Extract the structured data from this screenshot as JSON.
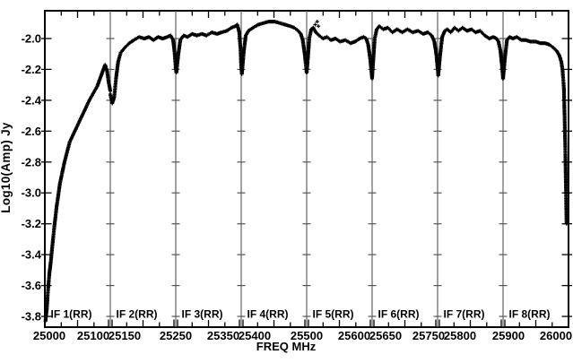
{
  "chart_data": {
    "type": "line",
    "title": "",
    "xlabel": "FREQ MHz",
    "ylabel": "Log10(Amp) Jy",
    "marker": "+",
    "grid": "panel-dividers-only",
    "legend": "none",
    "xlim": [
      25000,
      26000
    ],
    "ylim": [
      -3.87,
      -1.82
    ],
    "colors": {
      "curve": "#000000",
      "divider": "#555555",
      "frame": "#000000",
      "background": "#ffffff"
    },
    "y_ticks": [
      {
        "v": -2.0,
        "label": "-2.0"
      },
      {
        "v": -2.2,
        "label": "-2.2"
      },
      {
        "v": -2.4,
        "label": "-2.4"
      },
      {
        "v": -2.6,
        "label": "-2.6"
      },
      {
        "v": -2.8,
        "label": "-2.8"
      },
      {
        "v": -3.0,
        "label": "-3.0"
      },
      {
        "v": -3.2,
        "label": "-3.2"
      },
      {
        "v": -3.4,
        "label": "-3.4"
      },
      {
        "v": -3.6,
        "label": "-3.6"
      },
      {
        "v": -3.8,
        "label": "-3.8"
      }
    ],
    "x_ticks": [
      {
        "label": "25000",
        "panel": 0,
        "f": 25000,
        "dx": 5
      },
      {
        "label": "25100",
        "panel": 0,
        "f": 25100,
        "dx": -19
      },
      {
        "label": "25150",
        "panel": 1,
        "f": 25150,
        "dx": 16
      },
      {
        "label": "25250",
        "panel": 1,
        "f": 25250,
        "dx": 0
      },
      {
        "label": "25350",
        "panel": 2,
        "f": 25350,
        "dx": -20
      },
      {
        "label": "25400",
        "panel": 3,
        "f": 25400,
        "dx": 15
      },
      {
        "label": "25500",
        "panel": 3,
        "f": 25500,
        "dx": 0
      },
      {
        "label": "25600",
        "panel": 4,
        "f": 25600,
        "dx": -20
      },
      {
        "label": "25650",
        "panel": 5,
        "f": 25650,
        "dx": 15
      },
      {
        "label": "25750",
        "panel": 5,
        "f": 25750,
        "dx": -10
      },
      {
        "label": "25800",
        "panel": 6,
        "f": 25800,
        "dx": 25
      },
      {
        "label": "25900",
        "panel": 6,
        "f": 25900,
        "dx": 6
      },
      {
        "label": "26000",
        "panel": 7,
        "f": 26000,
        "dx": -14
      }
    ],
    "panels": [
      {
        "label": "IF 1(RR)",
        "xlim": [
          25000,
          25100
        ],
        "points": [
          [
            25001,
            -3.83
          ],
          [
            25003,
            -3.75
          ],
          [
            25005,
            -3.62
          ],
          [
            25007,
            -3.52
          ],
          [
            25009,
            -3.45
          ],
          [
            25012,
            -3.32
          ],
          [
            25015,
            -3.2
          ],
          [
            25018,
            -3.09
          ],
          [
            25023,
            -2.94
          ],
          [
            25030,
            -2.8
          ],
          [
            25038,
            -2.67
          ],
          [
            25048,
            -2.58
          ],
          [
            25058,
            -2.49
          ],
          [
            25068,
            -2.4
          ],
          [
            25080,
            -2.31
          ],
          [
            25086,
            -2.24
          ],
          [
            25092,
            -2.17
          ],
          [
            25095,
            -2.21
          ],
          [
            25097,
            -2.27
          ],
          [
            25100,
            -2.34
          ]
        ]
      },
      {
        "label": "IF 2(RR)",
        "xlim": [
          25150,
          25250
        ],
        "points": [
          [
            25150,
            -2.36
          ],
          [
            25153,
            -2.42
          ],
          [
            25156,
            -2.38
          ],
          [
            25159,
            -2.25
          ],
          [
            25162,
            -2.15
          ],
          [
            25166,
            -2.09
          ],
          [
            25172,
            -2.06
          ],
          [
            25179,
            -2.03
          ],
          [
            25186,
            -2.01
          ],
          [
            25194,
            -1.99
          ],
          [
            25202,
            -2.0
          ],
          [
            25209,
            -1.99
          ],
          [
            25216,
            -2.01
          ],
          [
            25223,
            -1.99
          ],
          [
            25230,
            -2.0
          ],
          [
            25237,
            -1.99
          ],
          [
            25242,
            -1.98
          ],
          [
            25246,
            -2.01
          ],
          [
            25248,
            -2.08
          ],
          [
            25250,
            -2.19
          ]
        ]
      },
      {
        "label": "IF 3(RR)",
        "xlim": [
          25250,
          25350
        ],
        "points": [
          [
            25250,
            -2.19
          ],
          [
            25251,
            -2.22
          ],
          [
            25254,
            -2.1
          ],
          [
            25257,
            -2.01
          ],
          [
            25262,
            -1.98
          ],
          [
            25268,
            -1.99
          ],
          [
            25275,
            -1.97
          ],
          [
            25282,
            -1.98
          ],
          [
            25290,
            -1.97
          ],
          [
            25297,
            -1.98
          ],
          [
            25305,
            -1.96
          ],
          [
            25313,
            -1.97
          ],
          [
            25320,
            -1.96
          ],
          [
            25328,
            -1.95
          ],
          [
            25335,
            -1.93
          ],
          [
            25341,
            -1.92
          ],
          [
            25344,
            -1.91
          ],
          [
            25347,
            -1.96
          ],
          [
            25349,
            -2.07
          ],
          [
            25350,
            -2.18
          ]
        ]
      },
      {
        "label": "IF 4(RR)",
        "xlim": [
          25400,
          25500
        ],
        "points": [
          [
            25400,
            -2.18
          ],
          [
            25401,
            -2.23
          ],
          [
            25404,
            -2.08
          ],
          [
            25407,
            -1.98
          ],
          [
            25411,
            -1.95
          ],
          [
            25418,
            -1.93
          ],
          [
            25426,
            -1.91
          ],
          [
            25434,
            -1.9
          ],
          [
            25442,
            -1.89
          ],
          [
            25451,
            -1.89
          ],
          [
            25459,
            -1.9
          ],
          [
            25467,
            -1.91
          ],
          [
            25475,
            -1.92
          ],
          [
            25481,
            -1.93
          ],
          [
            25487,
            -1.95
          ],
          [
            25491,
            -1.97
          ],
          [
            25494,
            -2.01
          ],
          [
            25497,
            -2.1
          ],
          [
            25500,
            -2.22
          ]
        ]
      },
      {
        "label": "IF 5(RR)",
        "xlim": [
          25500,
          25600
        ],
        "points": [
          [
            25500,
            -2.22
          ],
          [
            25502,
            -2.12
          ],
          [
            25504,
            -2.0
          ],
          [
            25507,
            -1.94
          ],
          [
            25510,
            -1.93
          ],
          [
            25514,
            -1.96
          ],
          [
            25519,
            -1.98
          ],
          [
            25525,
            -2.0
          ],
          [
            25531,
            -1.99
          ],
          [
            25537,
            -2.01
          ],
          [
            25544,
            -2.0
          ],
          [
            25551,
            -2.02
          ],
          [
            25559,
            -2.01
          ],
          [
            25567,
            -2.03
          ],
          [
            25574,
            -2.02
          ],
          [
            25581,
            -2.0
          ],
          [
            25587,
            -1.99
          ],
          [
            25591,
            -2.0
          ],
          [
            25594,
            -2.04
          ],
          [
            25597,
            -2.13
          ],
          [
            25600,
            -2.26
          ]
        ]
      },
      {
        "label": "IF 6(RR)",
        "xlim": [
          25650,
          25750
        ],
        "points": [
          [
            25650,
            -2.25
          ],
          [
            25652,
            -2.12
          ],
          [
            25654,
            -2.0
          ],
          [
            25657,
            -1.94
          ],
          [
            25661,
            -1.92
          ],
          [
            25667,
            -1.94
          ],
          [
            25674,
            -1.93
          ],
          [
            25681,
            -1.96
          ],
          [
            25688,
            -1.94
          ],
          [
            25696,
            -1.96
          ],
          [
            25704,
            -1.94
          ],
          [
            25712,
            -1.96
          ],
          [
            25720,
            -1.95
          ],
          [
            25728,
            -1.97
          ],
          [
            25735,
            -1.96
          ],
          [
            25741,
            -1.98
          ],
          [
            25745,
            -2.02
          ],
          [
            25748,
            -2.1
          ],
          [
            25750,
            -2.19
          ]
        ]
      },
      {
        "label": "IF 7(RR)",
        "xlim": [
          25800,
          25900
        ],
        "points": [
          [
            25800,
            -2.19
          ],
          [
            25801,
            -2.24
          ],
          [
            25804,
            -2.1
          ],
          [
            25807,
            -1.99
          ],
          [
            25811,
            -1.95
          ],
          [
            25815,
            -1.94
          ],
          [
            25820,
            -1.96
          ],
          [
            25826,
            -1.93
          ],
          [
            25832,
            -1.95
          ],
          [
            25838,
            -1.93
          ],
          [
            25845,
            -1.95
          ],
          [
            25852,
            -1.94
          ],
          [
            25858,
            -1.96
          ],
          [
            25865,
            -1.95
          ],
          [
            25872,
            -1.98
          ],
          [
            25879,
            -2.0
          ],
          [
            25885,
            -1.99
          ],
          [
            25890,
            -2.0
          ],
          [
            25893,
            -2.02
          ],
          [
            25896,
            -2.08
          ],
          [
            25898,
            -2.16
          ],
          [
            25900,
            -2.26
          ]
        ]
      },
      {
        "label": "IF 8(RR)",
        "xlim": [
          25900,
          26000
        ],
        "points": [
          [
            25900,
            -2.26
          ],
          [
            25903,
            -2.12
          ],
          [
            25906,
            -2.01
          ],
          [
            25910,
            -1.99
          ],
          [
            25915,
            -2.0
          ],
          [
            25921,
            -1.99
          ],
          [
            25928,
            -2.01
          ],
          [
            25935,
            -2.01
          ],
          [
            25942,
            -2.02
          ],
          [
            25950,
            -2.02
          ],
          [
            25957,
            -2.03
          ],
          [
            25964,
            -2.03
          ],
          [
            25971,
            -2.04
          ],
          [
            25977,
            -2.06
          ],
          [
            25982,
            -2.08
          ],
          [
            25986,
            -2.11
          ],
          [
            25989,
            -2.15
          ],
          [
            25991,
            -2.21
          ],
          [
            25993,
            -2.33
          ],
          [
            25994,
            -2.5
          ],
          [
            25995,
            -2.7
          ],
          [
            25996,
            -2.95
          ],
          [
            25997,
            -3.2
          ]
        ]
      }
    ],
    "outlier_points": [
      [
        25513,
        -1.91
      ],
      [
        25516,
        -1.89
      ],
      [
        25518,
        -1.92
      ]
    ]
  }
}
